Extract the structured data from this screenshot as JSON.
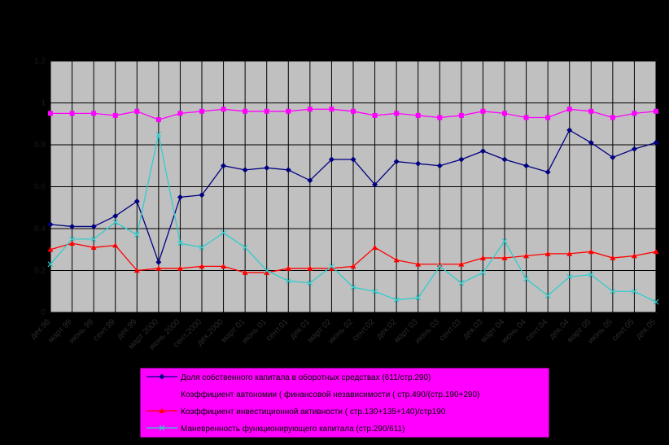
{
  "chart_data": {
    "type": "line",
    "categories": [
      "дек.98",
      "март 99",
      "июнь 99",
      "сент.99",
      "дек.99",
      "март 2000",
      "июнь 2000",
      "сент.2000",
      "дек.2000",
      "март 01",
      "июнь 01",
      "сент.01",
      "дек.01",
      "март 02",
      "июнь 02",
      "сент.02",
      "дек.02",
      "март 03",
      "июнь 03",
      "сент.03",
      "дек.03",
      "март 04",
      "июнь 04",
      "сент.04",
      "дек.04",
      "март 05",
      "июнь 05",
      "сент.05",
      "дек.05"
    ],
    "series": [
      {
        "name": "Доля собственного капитала в оборотных средствах  (611/стр.290)",
        "color": "#000080",
        "marker": "diamond",
        "values": [
          0.42,
          0.41,
          0.41,
          0.46,
          0.53,
          0.24,
          0.55,
          0.56,
          0.7,
          0.68,
          0.69,
          0.68,
          0.63,
          0.73,
          0.73,
          0.61,
          0.72,
          0.71,
          0.7,
          0.73,
          0.77,
          0.73,
          0.7,
          0.67,
          0.87,
          0.81,
          0.74,
          0.78,
          0.81
        ]
      },
      {
        "name": "Коэффициент автономии ( финансовой независимости ( стр.490/(стр.190+290)",
        "color": "#ff00ff",
        "marker": "square",
        "values": [
          0.95,
          0.95,
          0.95,
          0.94,
          0.96,
          0.92,
          0.95,
          0.96,
          0.97,
          0.96,
          0.96,
          0.96,
          0.97,
          0.97,
          0.96,
          0.94,
          0.95,
          0.94,
          0.93,
          0.94,
          0.96,
          0.95,
          0.93,
          0.93,
          0.97,
          0.96,
          0.93,
          0.95,
          0.96
        ]
      },
      {
        "name": "Коэффициент инвестиционной активности ( стр.130+135+140)/стр190",
        "color": "#ff0000",
        "marker": "triangle",
        "values": [
          0.3,
          0.33,
          0.31,
          0.32,
          0.2,
          0.21,
          0.21,
          0.22,
          0.22,
          0.19,
          0.19,
          0.21,
          0.21,
          0.21,
          0.22,
          0.31,
          0.25,
          0.23,
          0.23,
          0.23,
          0.26,
          0.26,
          0.27,
          0.28,
          0.28,
          0.29,
          0.26,
          0.27,
          0.29
        ]
      },
      {
        "name": "Маневренность функционирующего капитала (стр.290/611)",
        "color": "#33cccc",
        "marker": "x",
        "values": [
          0.23,
          0.35,
          0.35,
          0.43,
          0.37,
          0.85,
          0.33,
          0.31,
          0.38,
          0.31,
          0.2,
          0.15,
          0.14,
          0.22,
          0.12,
          0.1,
          0.06,
          0.07,
          0.22,
          0.14,
          0.19,
          0.34,
          0.16,
          0.08,
          0.17,
          0.18,
          0.1,
          0.1,
          0.05
        ]
      }
    ],
    "ylim": [
      0,
      1.2
    ],
    "yticks": [
      0,
      0.2,
      0.4,
      0.6,
      0.8,
      1,
      1.2
    ],
    "grid": true
  }
}
